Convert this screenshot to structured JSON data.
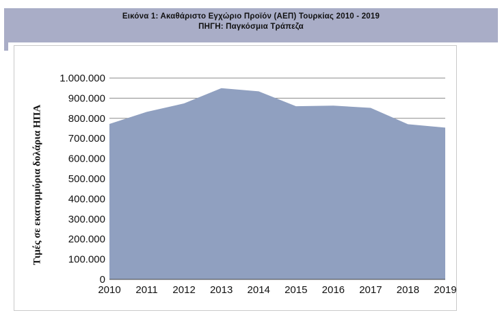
{
  "header": {
    "title": "Εικόνα 1: Ακαθάριστο Εγχώριο Προϊόν (ΑΕΠ) Τουρκίας 2010 - 2019",
    "source": "ΠΗΓΗ: Παγκόσμια Τράπεζα"
  },
  "colors": {
    "header_band": "#a9adc7",
    "area_fill": "#90a0c0",
    "gridline": "#8a8a8a"
  },
  "chart_data": {
    "type": "area",
    "title": "Εικόνα 1: Ακαθάριστο Εγχώριο Προϊόν (ΑΕΠ) Τουρκίας 2010 - 2019",
    "subtitle": "ΠΗΓΗ: Παγκόσμια Τράπεζα",
    "xlabel": "",
    "ylabel": "Τιμές σε εκατομμύρια δολάρια ΗΠΑ",
    "x": [
      "2010",
      "2011",
      "2012",
      "2013",
      "2014",
      "2015",
      "2016",
      "2017",
      "2018",
      "2019"
    ],
    "series": [
      {
        "values": [
          772000,
          832000,
          874000,
          950000,
          934000,
          860000,
          863000,
          852000,
          771000,
          754000
        ]
      }
    ],
    "ylim": [
      0,
      1000000
    ],
    "yticks": [
      "0",
      "100.000",
      "200.000",
      "300.000",
      "400.000",
      "500.000",
      "600.000",
      "700.000",
      "800.000",
      "900.000",
      "1.000.000"
    ],
    "grid": "horizontal lines at 700.000 and above",
    "legend": "none"
  }
}
